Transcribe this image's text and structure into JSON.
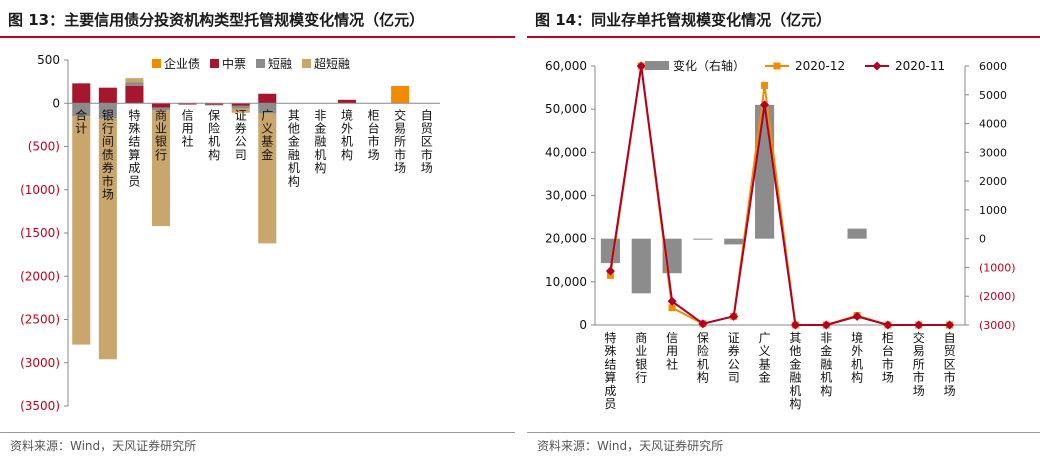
{
  "left": {
    "title": "图 13：主要信用债分投资机构类型托管规模变化情况（亿元）",
    "source": "资料来源：Wind，天风证券研究所",
    "chart_data": {
      "type": "bar",
      "stacked": true,
      "categories": [
        "合计",
        "银行间债券市场",
        "特殊结算成员",
        "商业银行",
        "信用社",
        "保险机构",
        "证券公司",
        "广义基金",
        "其他金融机构",
        "非金融机构",
        "境外机构",
        "柜台市场",
        "交易所市场",
        "自贸区市场"
      ],
      "series": [
        {
          "name": "企业债",
          "color": "#f08c00",
          "values": [
            0,
            0,
            0,
            0,
            0,
            0,
            0,
            0,
            0,
            0,
            0,
            0,
            200,
            0
          ]
        },
        {
          "name": "中票",
          "color": "#a6162f",
          "values": [
            230,
            180,
            200,
            -50,
            -15,
            -15,
            -30,
            110,
            0,
            0,
            40,
            0,
            0,
            0
          ]
        },
        {
          "name": "短融",
          "color": "#8c8c8c",
          "values": [
            -150,
            -180,
            40,
            -30,
            0,
            -10,
            -30,
            -120,
            0,
            0,
            0,
            0,
            0,
            0
          ]
        },
        {
          "name": "超短融",
          "color": "#c9a66b",
          "values": [
            -2640,
            -2780,
            50,
            -1340,
            0,
            0,
            -50,
            -1500,
            0,
            0,
            0,
            0,
            0,
            0
          ]
        }
      ],
      "y_ticks": [
        "500",
        "0",
        "(500)",
        "(1000)",
        "(1500)",
        "(2000)",
        "(2500)",
        "(3000)",
        "(3500)"
      ],
      "ylim": [
        -3500,
        500
      ],
      "legend": "top"
    }
  },
  "right": {
    "title": "图 14：同业存单托管规模变化情况（亿元）",
    "source": "资料来源：Wind，天风证券研究所",
    "chart_data": {
      "type": "bar-line",
      "categories": [
        "特殊结算成员",
        "商业银行",
        "信用社",
        "保险机构",
        "证券公司",
        "广义基金",
        "其他金融机构",
        "非金融机构",
        "境外机构",
        "柜台市场",
        "交易所市场",
        "自贸区市场"
      ],
      "series": [
        {
          "name": "变化（右轴）",
          "type": "bar",
          "axis": "right",
          "color": "#8c8c8c",
          "values": [
            -850,
            -1900,
            -1200,
            -30,
            -200,
            4650,
            0,
            0,
            350,
            0,
            0,
            0
          ]
        },
        {
          "name": "2020-12",
          "type": "line",
          "axis": "left",
          "color": "#f08c00",
          "values": [
            11500,
            60500,
            4000,
            300,
            2000,
            55500,
            0,
            0,
            2200,
            0,
            0,
            0
          ]
        },
        {
          "name": "2020-11",
          "type": "line",
          "axis": "left",
          "color": "#b0002a",
          "values": [
            12500,
            62500,
            5500,
            300,
            2000,
            51000,
            0,
            0,
            2000,
            0,
            0,
            0
          ]
        }
      ],
      "y_left_ticks": [
        "60,000",
        "50,000",
        "40,000",
        "30,000",
        "20,000",
        "10,000",
        "0"
      ],
      "y_right_ticks": [
        "6000",
        "5000",
        "4000",
        "3000",
        "2000",
        "1000",
        "0",
        "(1000)",
        "(2000)",
        "(3000)"
      ],
      "ylim_left": [
        0,
        60000
      ],
      "ylim_right": [
        -3000,
        6000
      ],
      "legend": "top"
    }
  }
}
